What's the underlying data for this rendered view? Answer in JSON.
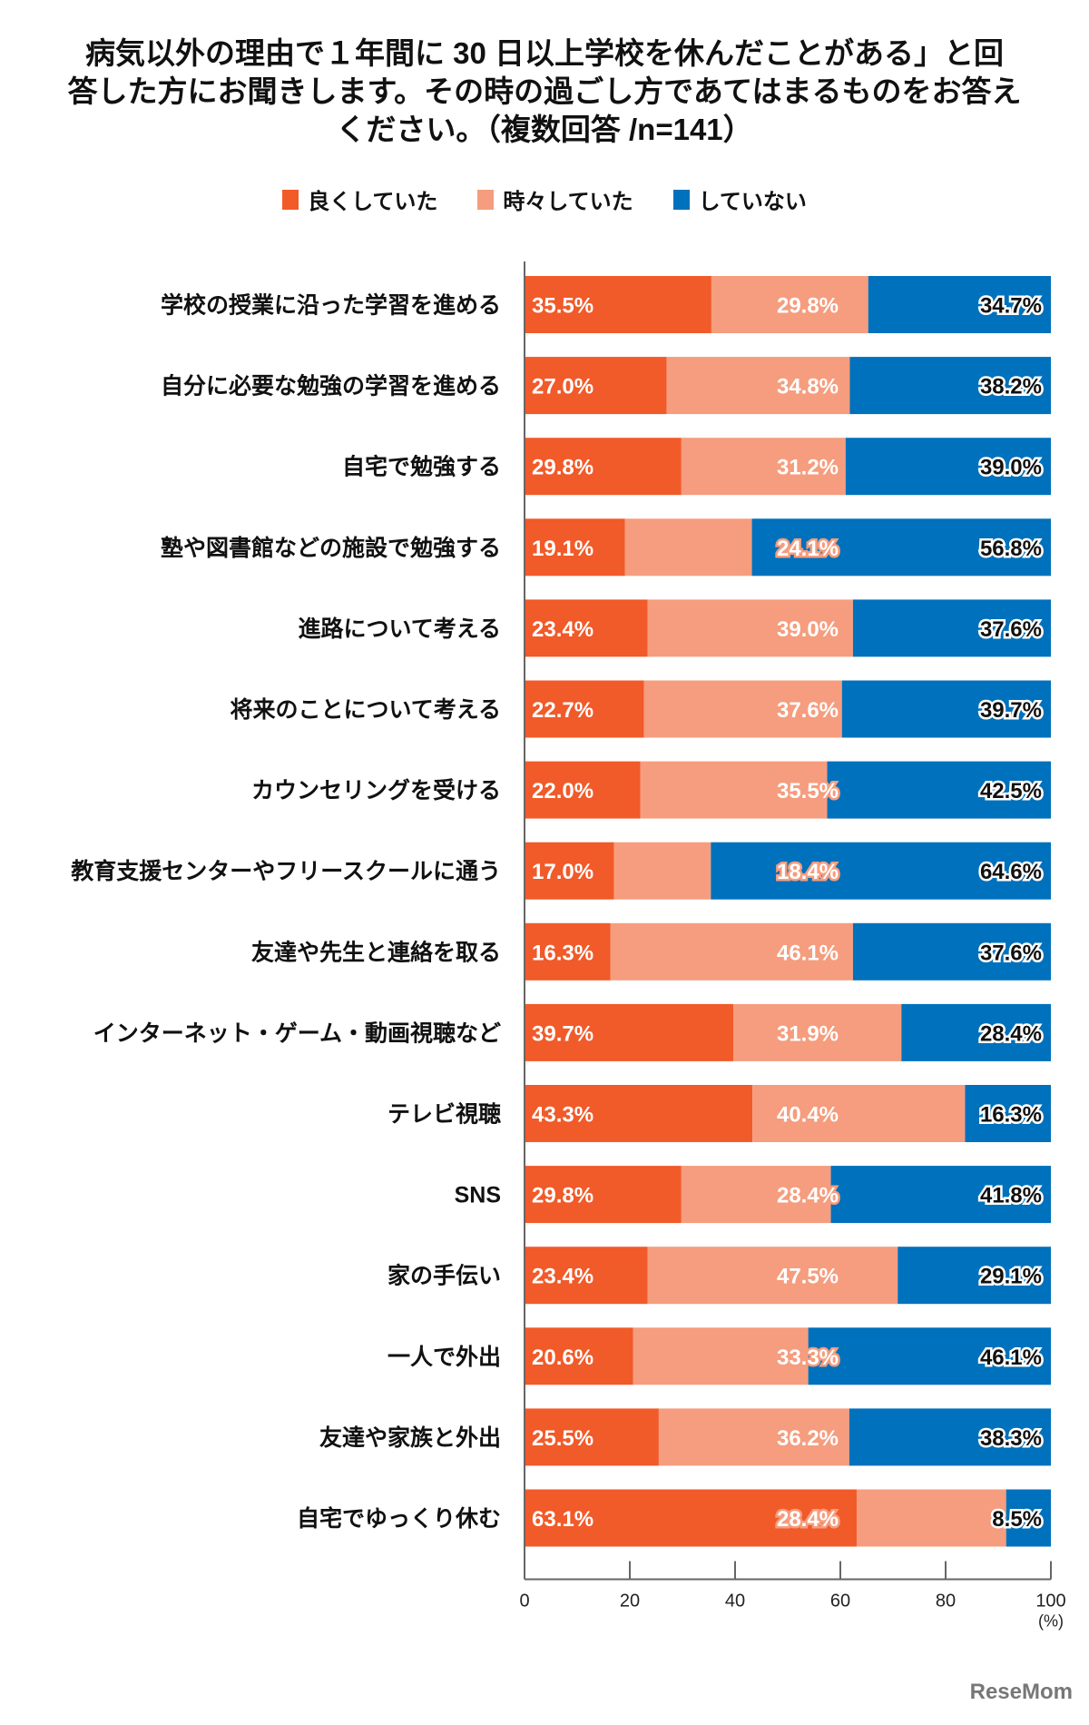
{
  "title": [
    "病気以外の理由で１年間に 30 日以上学校を休んだことがある」と回",
    "答した方にお聞きします。その時の過ごし方であてはまるものをお答え",
    "ください。（複数回答 /n=141）"
  ],
  "logo": "ReseMom",
  "chart_data": {
    "type": "bar",
    "orientation": "horizontal",
    "stacked": true,
    "xlabel": "(%)",
    "xlim": [
      0,
      100
    ],
    "xticks": [
      0,
      20,
      40,
      60,
      80,
      100
    ],
    "legend_position": "top",
    "colors": [
      "#f15a29",
      "#f59d7e",
      "#0071bc"
    ],
    "series_names": [
      "良くしていた",
      "時々していた",
      "していない"
    ],
    "categories": [
      "学校の授業に沿った学習を進める",
      "自分に必要な勉強の学習を進める",
      "自宅で勉強する",
      "塾や図書館などの施設で勉強する",
      "進路について考える",
      "将来のことについて考える",
      "カウンセリングを受ける",
      "教育支援センターやフリースクールに通う",
      "友達や先生と連絡を取る",
      "インターネット・ゲーム・動画視聴など",
      "テレビ視聴",
      "SNS",
      "家の手伝い",
      "一人で外出",
      "友達や家族と外出",
      "自宅でゆっくり休む"
    ],
    "series": [
      {
        "name": "良くしていた",
        "values": [
          35.5,
          27.0,
          29.8,
          19.1,
          23.4,
          22.7,
          22.0,
          17.0,
          16.3,
          39.7,
          43.3,
          29.8,
          23.4,
          20.6,
          25.5,
          63.1
        ]
      },
      {
        "name": "時々していた",
        "values": [
          29.8,
          34.8,
          31.2,
          24.1,
          39.0,
          37.6,
          35.5,
          18.4,
          46.1,
          31.9,
          40.4,
          28.4,
          47.5,
          33.3,
          36.2,
          28.4
        ]
      },
      {
        "name": "していない",
        "values": [
          34.7,
          38.2,
          39.0,
          56.8,
          37.6,
          39.7,
          42.5,
          64.6,
          37.6,
          28.4,
          16.3,
          41.8,
          29.1,
          46.1,
          38.3,
          8.5
        ]
      }
    ]
  }
}
